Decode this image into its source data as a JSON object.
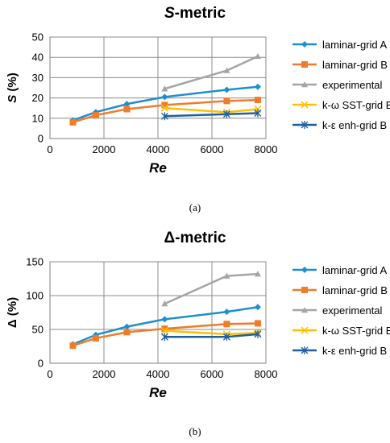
{
  "chart_data": [
    {
      "type": "line",
      "title_italic": "S",
      "title_rest": "-metric",
      "xlabel": "Re",
      "ylabel_italic": "S",
      "ylabel_rest": " (%)",
      "xlim": [
        0,
        8000
      ],
      "ylim": [
        0,
        50
      ],
      "xticks": [
        0,
        2000,
        4000,
        6000,
        8000
      ],
      "yticks": [
        0,
        10,
        20,
        30,
        40,
        50
      ],
      "grid": true,
      "legend": "right",
      "caption": "(a)",
      "series": [
        {
          "name": "laminar-grid A",
          "color": "#1f8fcc",
          "marker": "diamond",
          "x": [
            850,
            1700,
            2850,
            4250,
            6550,
            7700
          ],
          "y": [
            9,
            13,
            17,
            20.5,
            24,
            25.5
          ]
        },
        {
          "name": "laminar-grid B",
          "color": "#f07c2a",
          "marker": "square",
          "x": [
            850,
            1700,
            2850,
            4250,
            6550,
            7700
          ],
          "y": [
            8,
            11.5,
            14.5,
            16.5,
            18.5,
            19
          ]
        },
        {
          "name": "experimental",
          "color": "#a5a5a5",
          "marker": "triangle",
          "x": [
            4250,
            6550,
            7700
          ],
          "y": [
            24.5,
            33.5,
            40.5
          ]
        },
        {
          "name": "k-ω SST-grid B",
          "color": "#ffc000",
          "marker": "x",
          "x": [
            4250,
            6550,
            7700
          ],
          "y": [
            15,
            13,
            14.5
          ]
        },
        {
          "name": "k-ε enh-grid B",
          "color": "#1f5f9f",
          "marker": "star",
          "x": [
            4250,
            6550,
            7700
          ],
          "y": [
            11,
            12,
            12.5
          ]
        }
      ]
    },
    {
      "type": "line",
      "title_italic": "",
      "title_rest": "Δ-metric",
      "xlabel": "Re",
      "ylabel_italic": "",
      "ylabel_rest": "Δ (%)",
      "xlim": [
        0,
        8000
      ],
      "ylim": [
        0,
        150
      ],
      "xticks": [
        0,
        2000,
        4000,
        6000,
        8000
      ],
      "yticks": [
        0,
        50,
        100,
        150
      ],
      "grid": true,
      "legend": "right",
      "caption": "(b)",
      "series": [
        {
          "name": "laminar-grid A",
          "color": "#1f8fcc",
          "marker": "diamond",
          "x": [
            850,
            1700,
            2850,
            4250,
            6550,
            7700
          ],
          "y": [
            28,
            42,
            54,
            65,
            76,
            83
          ]
        },
        {
          "name": "laminar-grid B",
          "color": "#f07c2a",
          "marker": "square",
          "x": [
            850,
            1700,
            2850,
            4250,
            6550,
            7700
          ],
          "y": [
            26,
            37,
            46,
            51,
            58,
            59
          ]
        },
        {
          "name": "experimental",
          "color": "#a5a5a5",
          "marker": "triangle",
          "x": [
            4250,
            6550,
            7700
          ],
          "y": [
            88,
            129,
            132
          ]
        },
        {
          "name": "k-ω SST-grid B",
          "color": "#ffc000",
          "marker": "x",
          "x": [
            4250,
            6550,
            7700
          ],
          "y": [
            48,
            43,
            45
          ]
        },
        {
          "name": "k-ε enh-grid B",
          "color": "#1f5f9f",
          "marker": "star",
          "x": [
            4250,
            6550,
            7700
          ],
          "y": [
            39,
            39,
            43
          ]
        }
      ]
    }
  ]
}
